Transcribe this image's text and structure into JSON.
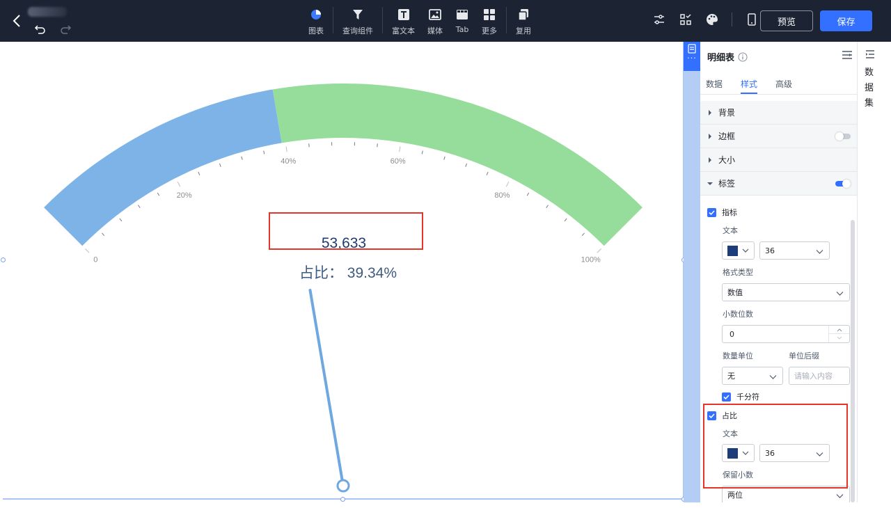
{
  "topbar": {
    "tools": [
      {
        "icon": "chart-pie-icon",
        "label": "图表"
      },
      {
        "icon": "filter-icon",
        "label": "查询组件"
      },
      {
        "icon": "text-icon",
        "label": "富文本"
      },
      {
        "icon": "image-icon",
        "label": "媒体"
      },
      {
        "icon": "tab-icon",
        "label": "Tab"
      },
      {
        "icon": "grid-icon",
        "label": "更多"
      },
      {
        "icon": "copy-icon",
        "label": "复用"
      }
    ],
    "preview_label": "预览",
    "save_label": "保存"
  },
  "gauge": {
    "metric_value": "53,633",
    "ratio_text": "占比：  39.34%",
    "ratio": 0.3934,
    "tick_labels": [
      "0",
      "20%",
      "40%",
      "60%",
      "80%",
      "100%"
    ],
    "colors": {
      "filled": "#7eb3e8",
      "remaining": "#96dc9b",
      "needle": "#6fa8e0"
    }
  },
  "panel": {
    "title": "明细表",
    "tabs": [
      "数据",
      "样式",
      "高级"
    ],
    "active_tab": "样式",
    "sections": {
      "background": "背景",
      "border": "边框",
      "size": "大小",
      "label": "标签"
    },
    "metric": {
      "checkbox_label": "指标",
      "text_label": "文本",
      "font_size": "36",
      "format_type_label": "格式类型",
      "format_type_value": "数值",
      "decimals_label": "小数位数",
      "decimals_value": "0",
      "unit_label": "数量单位",
      "unit_value": "无",
      "suffix_label": "单位后缀",
      "suffix_placeholder": "请输入内容",
      "thousands_label": "千分符"
    },
    "ratio": {
      "checkbox_label": "占比",
      "text_label": "文本",
      "font_size": "36",
      "keep_decimals_label": "保留小数",
      "keep_decimals_value": "两位"
    },
    "swatch_color": "#1c3d7a"
  },
  "dataset_rail": {
    "label": "数据集"
  },
  "accent_color": "#3370ff"
}
